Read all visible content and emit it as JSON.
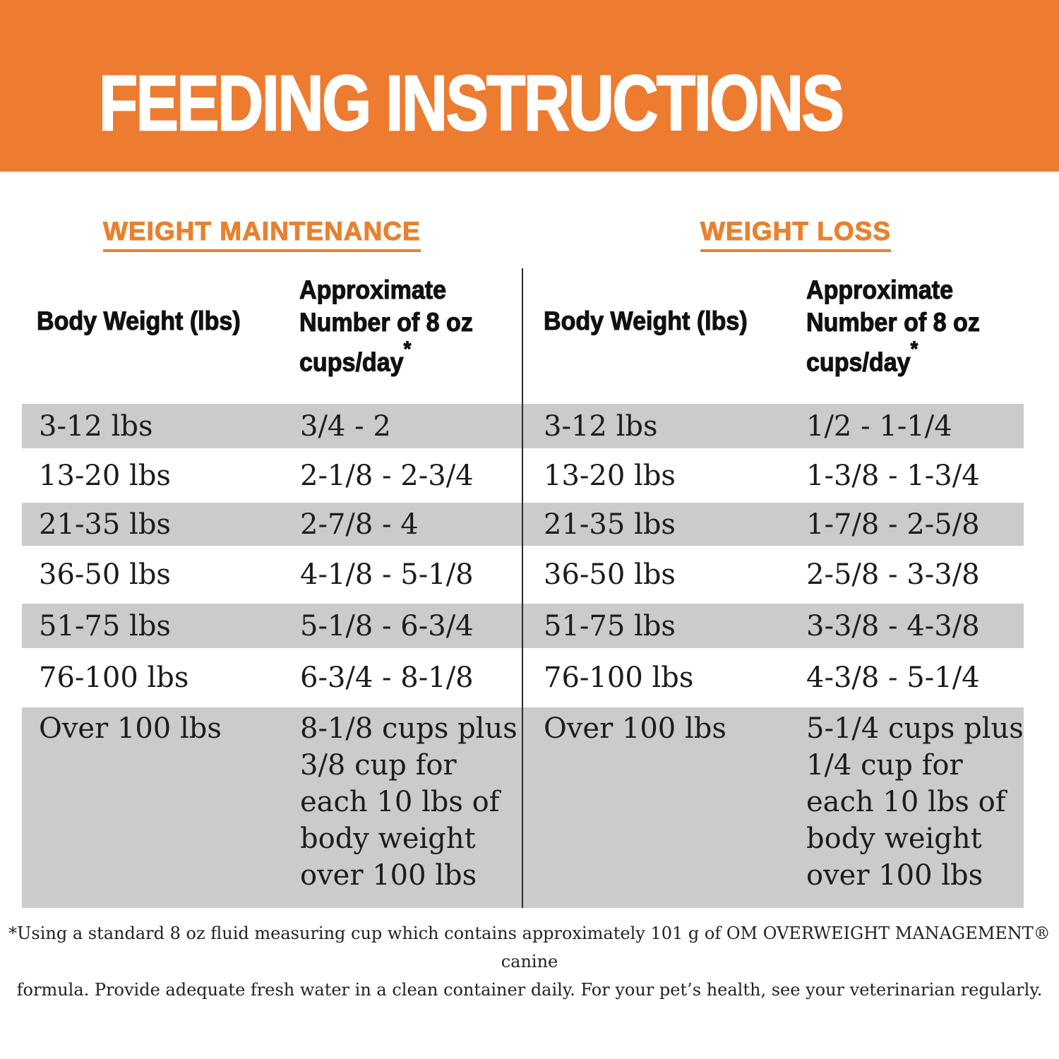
{
  "banner": {
    "title": "FEEDING INSTRUCTIONS",
    "bg_color": "#ED7B30",
    "text_color": "#FFFFFF"
  },
  "sections": {
    "maintenance_heading": "WEIGHT MAINTENANCE",
    "loss_heading": "WEIGHT LOSS",
    "heading_color": "#E8812F"
  },
  "table": {
    "headers": {
      "body_weight": "Body Weight (lbs)",
      "cups": "Approximate\nNumber of 8 oz\ncups/day",
      "asterisk": "*"
    },
    "row_shade_color": "#CBCBCB",
    "divider_color": "#2A2A2A",
    "rows": [
      {
        "maintenance_weight": "3-12 lbs",
        "maintenance_cups": "3/4 - 2",
        "loss_weight": "3-12 lbs",
        "loss_cups": "1/2 - 1-1/4"
      },
      {
        "maintenance_weight": "13-20 lbs",
        "maintenance_cups": "2-1/8 - 2-3/4",
        "loss_weight": "13-20 lbs",
        "loss_cups": "1-3/8 - 1-3/4"
      },
      {
        "maintenance_weight": "21-35 lbs",
        "maintenance_cups": "2-7/8 - 4",
        "loss_weight": "21-35 lbs",
        "loss_cups": "1-7/8 - 2-5/8"
      },
      {
        "maintenance_weight": "36-50 lbs",
        "maintenance_cups": "4-1/8 - 5-1/8",
        "loss_weight": "36-50 lbs",
        "loss_cups": "2-5/8 - 3-3/8"
      },
      {
        "maintenance_weight": "51-75 lbs",
        "maintenance_cups": "5-1/8 - 6-3/4",
        "loss_weight": "51-75 lbs",
        "loss_cups": "3-3/8 - 4-3/8"
      },
      {
        "maintenance_weight": "76-100 lbs",
        "maintenance_cups": "6-3/4 - 8-1/8",
        "loss_weight": "76-100 lbs",
        "loss_cups": "4-3/8 - 5-1/4"
      },
      {
        "maintenance_weight": "Over 100 lbs",
        "maintenance_cups": "8-1/8 cups plus\n3/8 cup for\neach 10 lbs of\nbody weight\nover 100 lbs",
        "loss_weight": "Over 100 lbs",
        "loss_cups": "5-1/4 cups plus\n1/4 cup for\neach 10 lbs of\nbody weight\nover 100 lbs"
      }
    ]
  },
  "footnote": {
    "text": "*Using a standard 8 oz fluid measuring cup which contains approximately 101 g of OM OVERWEIGHT MANAGEMENT® canine\nformula. Provide adequate fresh water in a clean container daily. For your pet’s health, see your veterinarian regularly."
  }
}
